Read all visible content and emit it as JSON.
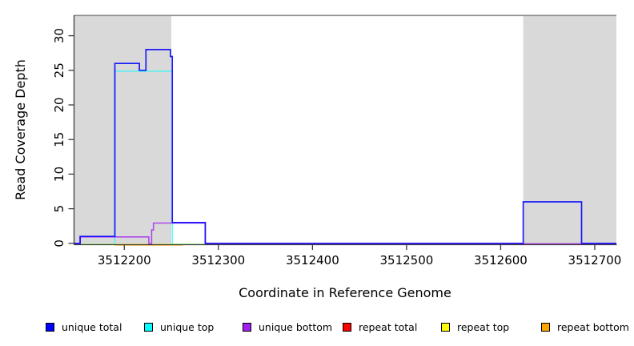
{
  "chart_data": {
    "type": "line",
    "step": true,
    "title": "",
    "xlabel": "Coordinate in Reference Genome",
    "ylabel": "Read Coverage Depth",
    "xlim": [
      3512147,
      3512723
    ],
    "ylim": [
      0,
      33
    ],
    "grid": false,
    "legend_position": "bottom",
    "xticks": [
      3512200,
      3512300,
      3512400,
      3512500,
      3512600,
      3512700
    ],
    "yticks": [
      0,
      5,
      10,
      15,
      20,
      25,
      30
    ],
    "top_boundary_line": {
      "value": 33,
      "color": "#8f8f8f"
    },
    "shade_color": "#d9d9d9",
    "shaded_regions": [
      {
        "from": 3512147,
        "to": 3512250
      },
      {
        "from": 3512624,
        "to": 3512723
      }
    ],
    "series": [
      {
        "name": "unique total",
        "color": "#0000ff",
        "points": [
          [
            3512147,
            0
          ],
          [
            3512153,
            1
          ],
          [
            3512190,
            26
          ],
          [
            3512216,
            25
          ],
          [
            3512223,
            28
          ],
          [
            3512249,
            27
          ],
          [
            3512251,
            3
          ],
          [
            3512286,
            0
          ],
          [
            3512624,
            6
          ],
          [
            3512686,
            0
          ],
          [
            3512723,
            0
          ]
        ]
      },
      {
        "name": "unique top",
        "color": "#00ffff",
        "points": [
          [
            3512147,
            0
          ],
          [
            3512190,
            25
          ],
          [
            3512251,
            0
          ],
          [
            3512723,
            0
          ]
        ]
      },
      {
        "name": "unique bottom",
        "color": "#a020f0",
        "points": [
          [
            3512147,
            0
          ],
          [
            3512153,
            1
          ],
          [
            3512226,
            0
          ],
          [
            3512229,
            2
          ],
          [
            3512231,
            3
          ],
          [
            3512286,
            0
          ],
          [
            3512723,
            0
          ]
        ]
      },
      {
        "name": "repeat total",
        "color": "#ff0000",
        "points": [
          [
            3512620,
            0
          ],
          [
            3512690,
            0
          ]
        ]
      },
      {
        "name": "repeat top",
        "color": "#ffff00",
        "points": [
          [
            3512147,
            0
          ],
          [
            3512723,
            0
          ]
        ]
      },
      {
        "name": "repeat bottom",
        "color": "#ffa500",
        "points": [
          [
            3512190,
            0
          ],
          [
            3512262,
            0
          ]
        ]
      }
    ],
    "legend": [
      {
        "label": "unique total",
        "color": "#0000ff"
      },
      {
        "label": "unique top",
        "color": "#00ffff"
      },
      {
        "label": "unique bottom",
        "color": "#a020f0"
      },
      {
        "label": "repeat total",
        "color": "#ff0000"
      },
      {
        "label": "repeat top",
        "color": "#ffff00"
      },
      {
        "label": "repeat bottom",
        "color": "#ffa500"
      }
    ]
  }
}
